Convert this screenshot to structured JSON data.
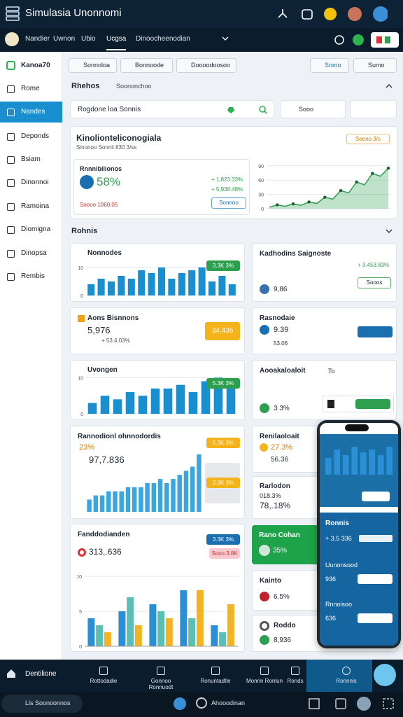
{
  "header": {
    "title": "Simulasia Unonnomi"
  },
  "nav": {
    "tabs": [
      "Nandier",
      "Uwnon",
      "Ubio",
      "Ucgsa",
      "Dinoocheenodian"
    ],
    "active": 3
  },
  "sidebar": {
    "title": "Kanoa70",
    "items": [
      "Rome",
      "Nandes",
      "Deponds",
      "Bsiam",
      "Dinonnoi",
      "Ramoina",
      "Diomigna",
      "Dinopsa",
      "Rembis"
    ],
    "active": 1
  },
  "filters": [
    "Sonnoloa",
    "Bonnoode",
    "Doooodoosoo"
  ],
  "actions": [
    "Snmo",
    "Sumo"
  ],
  "rhehos": {
    "title": "Rhehos",
    "tab": "Soononchoo",
    "search": "Rogdone loa Sonnis",
    "select": "Sooo"
  },
  "overview": {
    "title": "Kinolionteliconogiala",
    "subtitle": "Sinonoo Sonnii 830 3/ss",
    "badge": "Soono 3/s",
    "label": "Rnnnibilionos",
    "metric": "58%",
    "deltas": [
      "+ 1,823.33%",
      "+ 5,938.48%"
    ],
    "note": "Soooo 1060.05",
    "button": "Sonnoo",
    "chart": {
      "type": "line",
      "values": [
        3,
        8,
        5,
        10,
        7,
        14,
        11,
        24,
        20,
        38,
        33,
        56,
        50,
        74,
        68,
        85
      ],
      "ylim": [
        0,
        100
      ],
      "yticks": [
        0,
        30,
        60,
        90
      ],
      "color": "#2e9e4f"
    }
  },
  "rohnis": {
    "title": "Rohnis"
  },
  "cards_left": [
    {
      "title": "Nonnodes",
      "badge": "3.3K 3%",
      "chart": {
        "type": "bar",
        "values": [
          4,
          6,
          5,
          7,
          6,
          9,
          8,
          10,
          6,
          8,
          9,
          10,
          5,
          7,
          4
        ],
        "ylim": [
          0,
          12
        ],
        "yticks": [
          0,
          10
        ],
        "color": "#1a8fd0"
      }
    },
    {
      "title": "Aons Bisnnons",
      "value": "5,976",
      "delta": "+ 53.4.03%",
      "badge": "34,436"
    },
    {
      "title": "Uvongen",
      "badge": "5.3K 3%",
      "chart": {
        "type": "bar",
        "values": [
          3,
          5,
          4,
          6,
          5,
          7,
          7,
          8,
          6,
          9,
          10,
          8
        ],
        "ylim": [
          0,
          12
        ],
        "yticks": [
          0,
          10
        ],
        "color": "#1a8fd0"
      }
    },
    {
      "title": "Rannodionl ohnnodordis",
      "value": "23%",
      "sub": "97,7.836",
      "badges": [
        "5.3K 3%",
        "3.8K 3%"
      ],
      "chart": {
        "type": "bar",
        "values": [
          3,
          4,
          4,
          5,
          5,
          5,
          6,
          6,
          6,
          7,
          7,
          8,
          7,
          8,
          9,
          10,
          11,
          14
        ],
        "ylim": [
          0,
          15
        ],
        "color": "#3aa6e0"
      }
    },
    {
      "title": "Fanddodianden",
      "value": "313,.636",
      "badges": [
        "3.3K 3%",
        "Sooo 3.8K"
      ],
      "chart": {
        "type": "bar",
        "ylim": [
          0,
          10
        ],
        "yticks": [
          0,
          5,
          10
        ],
        "series": [
          {
            "color": "#2b8fd6",
            "values": [
              4,
              5,
              6,
              8,
              3
            ]
          },
          {
            "color": "#5bbfb5",
            "values": [
              3,
              7,
              5,
              4,
              2
            ]
          },
          {
            "color": "#f5b324",
            "values": [
              2,
              3,
              4,
              8,
              6
            ]
          }
        ]
      }
    }
  ],
  "cards_right": [
    {
      "title": "Kadhodins Saignoste",
      "delta": "+ 3.453.83%",
      "value": "9,86",
      "button": "Sooos"
    },
    {
      "title": "Rasnodaie",
      "value": "9.39",
      "sub": "53.06"
    },
    {
      "title": "Aooakaloaloit",
      "tag": "To",
      "value": "3.3%"
    },
    {
      "title": "Renilaoloait",
      "value": "27.3%",
      "sub": "56.36"
    },
    {
      "title": "Rarlodon",
      "value": "018.3%",
      "sub": "78,.18%"
    },
    {
      "title": "Rano Cohan",
      "value": "35%"
    },
    {
      "title": "Kainto",
      "value": "6.5%"
    },
    {
      "title": "Roddo",
      "value": "8,936"
    }
  ],
  "phone": {
    "title": "Ronnis",
    "value": "+ 3.5 336",
    "rows": [
      {
        "label": "Uunonsood",
        "value": "936"
      },
      {
        "label": "Rnnoisoo",
        "value": "636"
      }
    ],
    "chart": {
      "type": "bar",
      "values": [
        6,
        9,
        7,
        10,
        8,
        9,
        7,
        10
      ],
      "ylim": [
        0,
        12
      ],
      "color": "#2b8fd6"
    }
  },
  "bottom_nav": {
    "brand": "Dentilione",
    "items": [
      "Rottodadie",
      "Gonnoo Ronnuodt",
      "Ronuntadtle",
      "Monrin Ronlun",
      "Ronds",
      "Ronnnis"
    ],
    "active": 5
  },
  "taskbar": {
    "search": "Lis Soonoonnos",
    "label": "Ahooodinan"
  }
}
